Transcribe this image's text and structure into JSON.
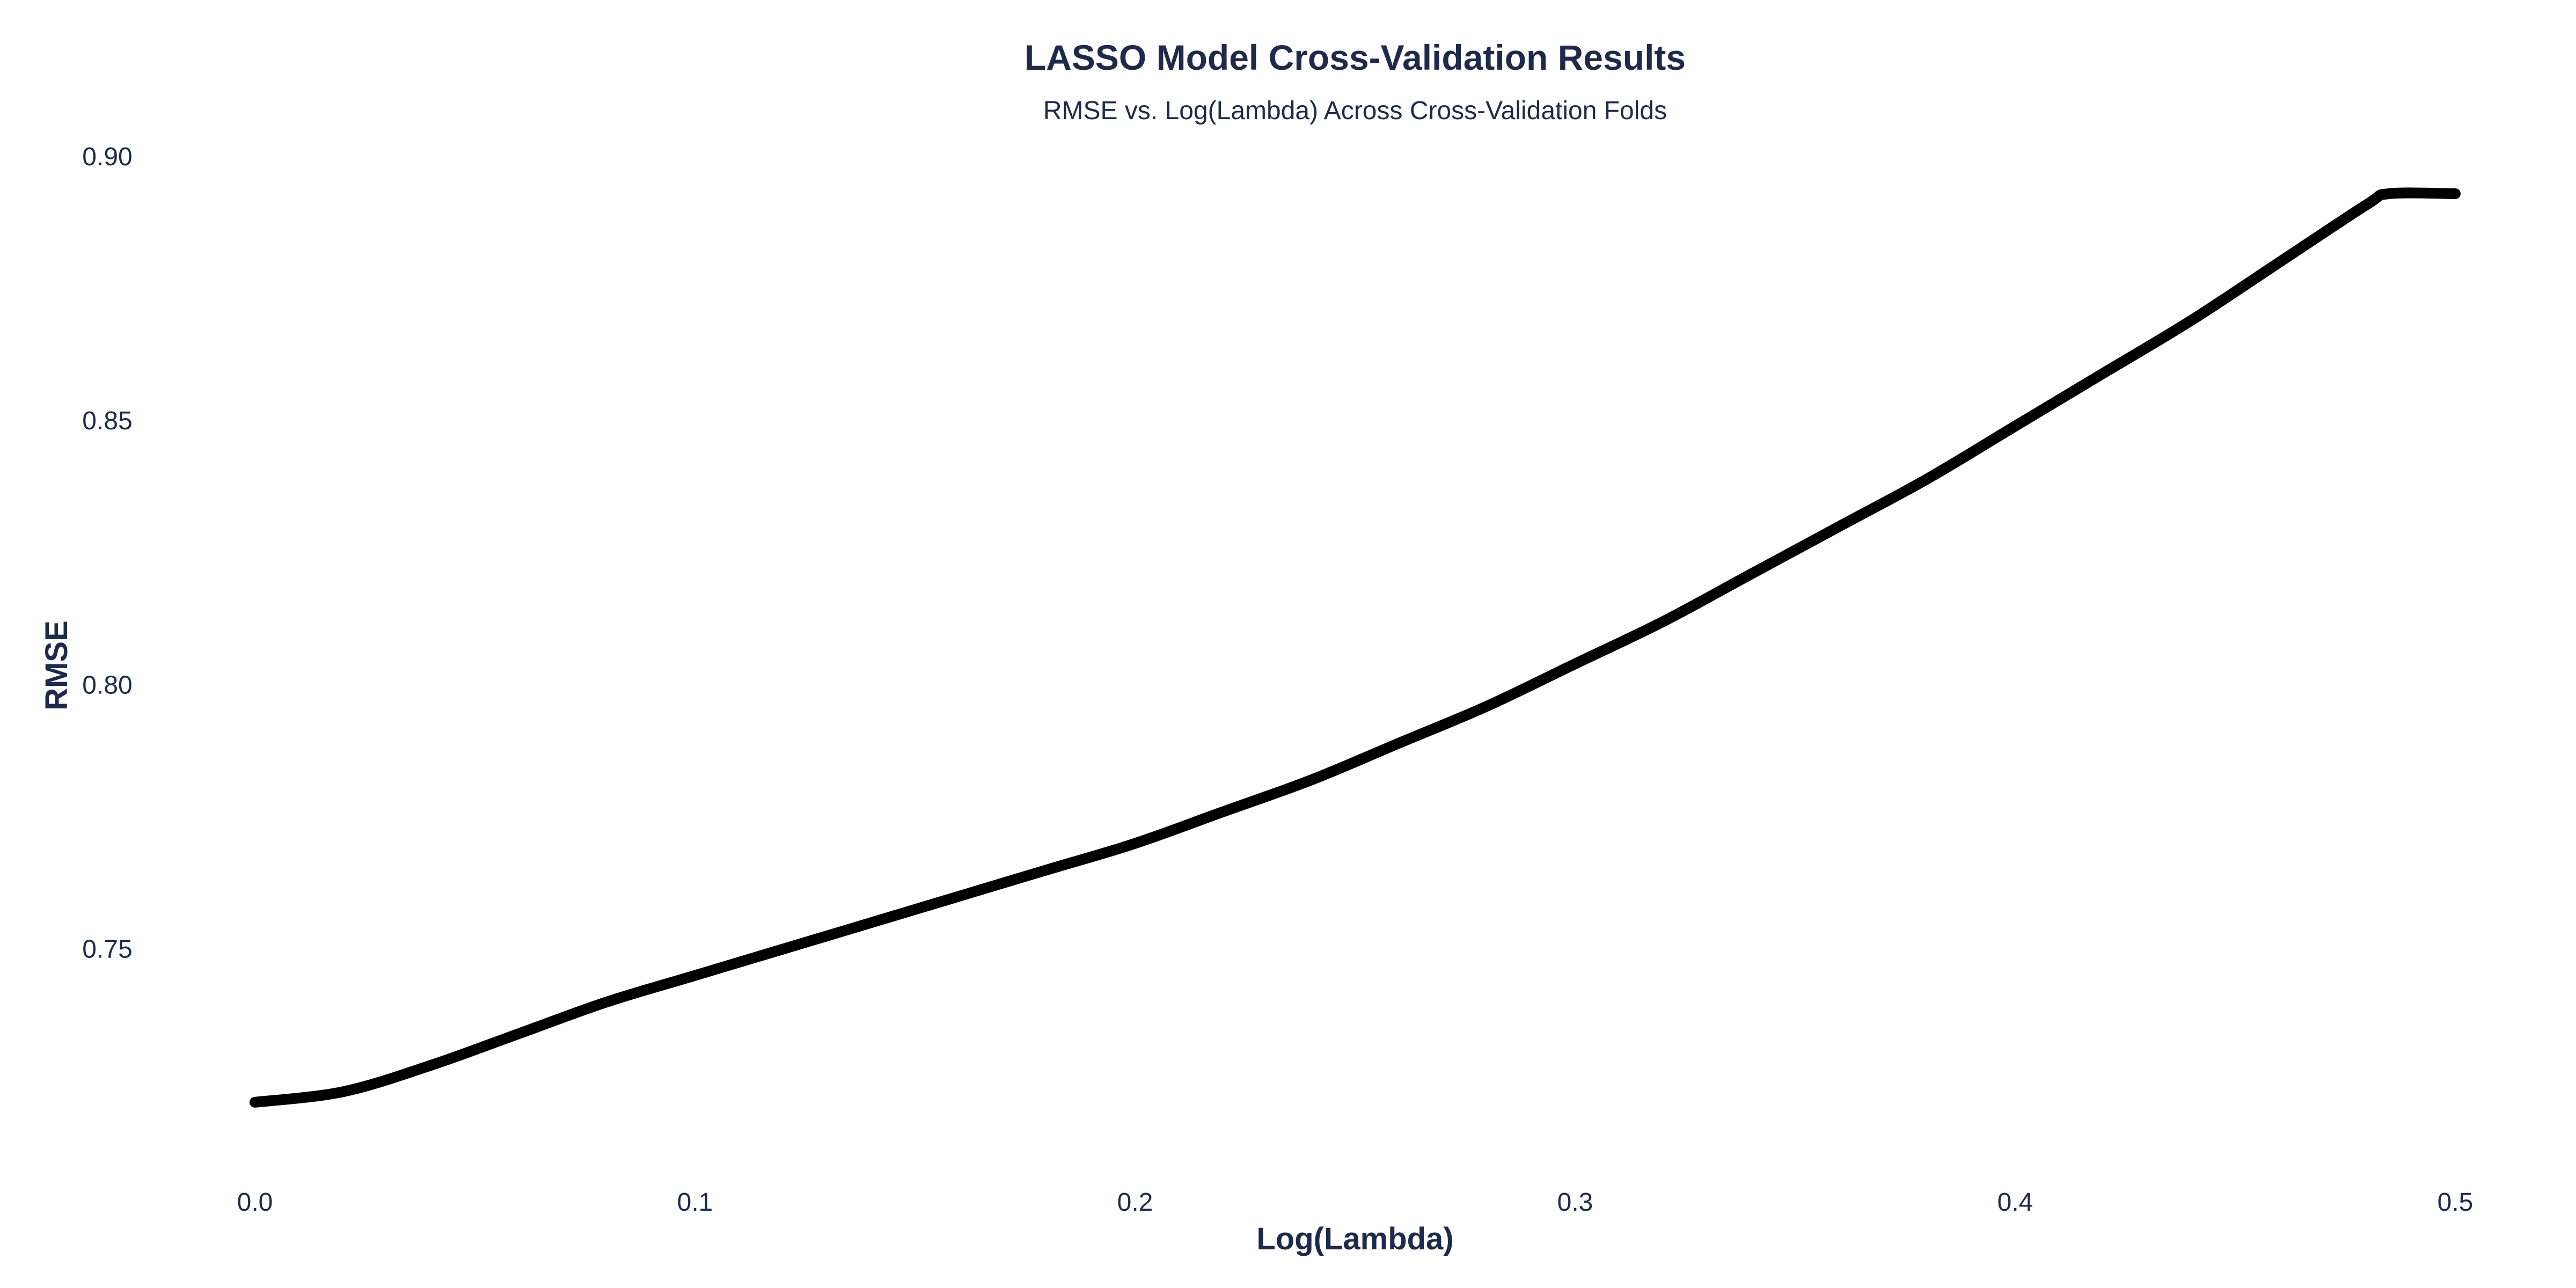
{
  "chart_data": {
    "type": "line",
    "title": "LASSO Model Cross-Validation Results",
    "subtitle": "RMSE vs. Log(Lambda) Across Cross-Validation Folds",
    "xlabel": "Log(Lambda)",
    "ylabel": "RMSE",
    "xlim": [
      0.0,
      0.5
    ],
    "ylim": [
      0.715,
      0.9
    ],
    "x_ticks": [
      "0.0",
      "0.1",
      "0.2",
      "0.3",
      "0.4",
      "0.5"
    ],
    "x_tick_values": [
      0.0,
      0.1,
      0.2,
      0.3,
      0.4,
      0.5
    ],
    "y_ticks": [
      "0.75",
      "0.80",
      "0.85",
      "0.90"
    ],
    "y_tick_values": [
      0.75,
      0.8,
      0.85,
      0.9
    ],
    "grid": false,
    "legend": "none",
    "series": [
      {
        "color": "#000000",
        "x": [
          0.0,
          0.02,
          0.04,
          0.06,
          0.08,
          0.1,
          0.12,
          0.14,
          0.16,
          0.18,
          0.2,
          0.22,
          0.24,
          0.26,
          0.28,
          0.3,
          0.32,
          0.34,
          0.36,
          0.38,
          0.4,
          0.42,
          0.44,
          0.46,
          0.48,
          0.485,
          0.5
        ],
        "y": [
          0.721,
          0.723,
          0.728,
          0.734,
          0.74,
          0.745,
          0.75,
          0.755,
          0.76,
          0.765,
          0.77,
          0.776,
          0.782,
          0.789,
          0.796,
          0.804,
          0.812,
          0.821,
          0.83,
          0.839,
          0.849,
          0.859,
          0.869,
          0.88,
          0.891,
          0.893,
          0.893
        ]
      }
    ]
  }
}
